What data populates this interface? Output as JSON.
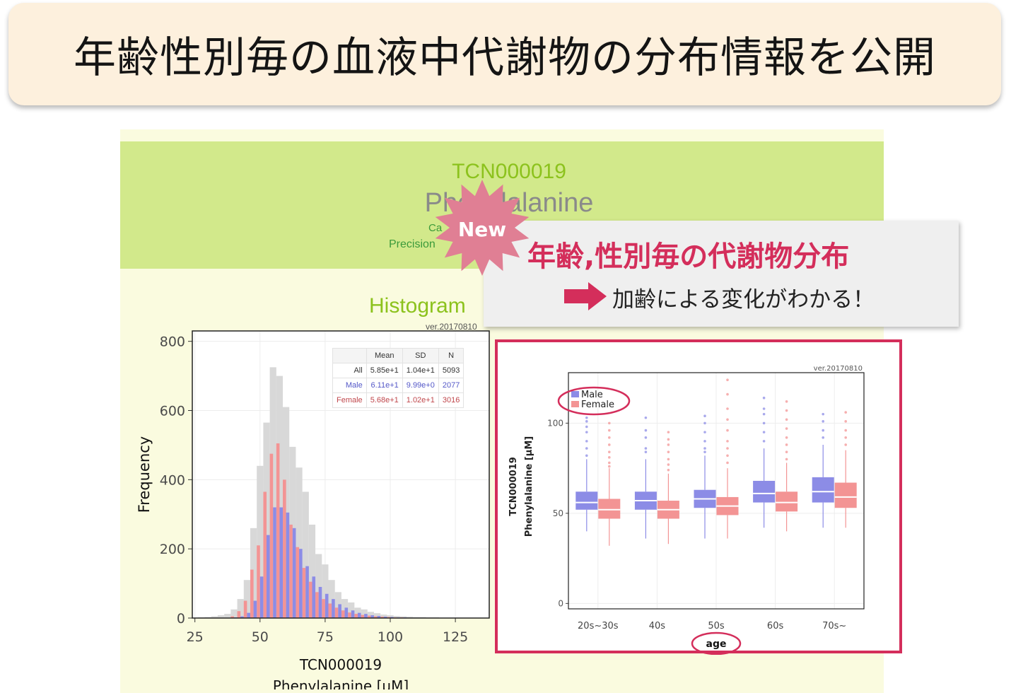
{
  "slide_title": "年齢性別毎の血液中代謝物の分布情報を公開",
  "header": {
    "id": "TCN000019",
    "name": "Phenylalanine",
    "sub1": "Ca",
    "sub2": "Precision"
  },
  "histogram_heading": "Histogram",
  "callout": {
    "badge": "New",
    "title": "年齢,性別毎の代謝物分布",
    "text": "加齢による変化がわかる！"
  },
  "colors": {
    "male": "#8c8ce6",
    "female": "#f39494",
    "all": "#d8d8d8",
    "accent": "#d42e5b",
    "header_green": "#d2e98b",
    "banner": "#fdf0dd"
  },
  "stats_table": {
    "headers": [
      "",
      "Mean",
      "SD",
      "N"
    ],
    "rows": [
      {
        "label": "All",
        "mean": "5.85e+1",
        "sd": "1.04e+1",
        "n": "5093"
      },
      {
        "label": "Male",
        "mean": "6.11e+1",
        "sd": "9.99e+0",
        "n": "2077"
      },
      {
        "label": "Female",
        "mean": "5.68e+1",
        "sd": "1.02e+1",
        "n": "3016"
      }
    ]
  },
  "chart_data": [
    {
      "type": "bar",
      "version": "ver.20170810",
      "xlabel": "TCN000019",
      "xlabel2": "Phenylalanine [μM]",
      "ylabel": "Frequency",
      "xlim": [
        24,
        138
      ],
      "ylim": [
        0,
        830
      ],
      "xticks": [
        25,
        50,
        75,
        100,
        125
      ],
      "yticks": [
        0,
        200,
        400,
        600,
        800
      ],
      "grid": true,
      "bin_width": 2.5,
      "series": [
        {
          "name": "All",
          "x": [
            27.5,
            30,
            32.5,
            35,
            37.5,
            40,
            42.5,
            45,
            47.5,
            50,
            52.5,
            55,
            57.5,
            60,
            62.5,
            65,
            67.5,
            70,
            72.5,
            75,
            77.5,
            80,
            82.5,
            85,
            87.5,
            90,
            92.5,
            95,
            97.5,
            100,
            102.5,
            105,
            107.5,
            110,
            112.5,
            115,
            117.5,
            120,
            122.5,
            125,
            127.5,
            130,
            132.5,
            135
          ],
          "values": [
            2,
            3,
            5,
            8,
            12,
            25,
            55,
            110,
            260,
            440,
            565,
            725,
            700,
            610,
            495,
            435,
            365,
            270,
            185,
            155,
            110,
            75,
            55,
            45,
            30,
            25,
            18,
            14,
            10,
            8,
            6,
            5,
            4,
            3,
            3,
            2,
            2,
            1,
            1,
            1,
            1,
            1,
            0,
            1
          ]
        },
        {
          "name": "Male",
          "x": [
            40,
            42.5,
            45,
            47.5,
            50,
            52.5,
            55,
            57.5,
            60,
            62.5,
            65,
            67.5,
            70,
            72.5,
            75,
            77.5,
            80,
            82.5,
            85,
            87.5,
            90,
            92.5,
            95,
            97.5,
            100,
            102.5,
            105,
            107.5,
            110
          ],
          "values": [
            2,
            5,
            15,
            50,
            120,
            240,
            320,
            320,
            305,
            260,
            200,
            150,
            120,
            90,
            70,
            55,
            40,
            30,
            22,
            15,
            12,
            8,
            6,
            4,
            3,
            2,
            2,
            1,
            1
          ]
        },
        {
          "name": "Female",
          "x": [
            40,
            42.5,
            45,
            47.5,
            50,
            52.5,
            55,
            57.5,
            60,
            62.5,
            65,
            67.5,
            70,
            72.5,
            75,
            77.5,
            80,
            82.5,
            85,
            87.5,
            90,
            92.5,
            95,
            97.5,
            100,
            102.5,
            105,
            107.5,
            110
          ],
          "values": [
            5,
            20,
            50,
            140,
            210,
            365,
            475,
            505,
            400,
            270,
            205,
            145,
            105,
            75,
            55,
            42,
            30,
            22,
            16,
            12,
            9,
            7,
            5,
            4,
            3,
            2,
            2,
            1,
            1
          ]
        }
      ]
    },
    {
      "type": "box",
      "version": "ver.20170810",
      "xlabel": "age",
      "ylabel": "TCN000019",
      "ylabel2": "Phenylalanine [μM]",
      "categories": [
        "20s~30s",
        "40s",
        "50s",
        "60s",
        "70s~"
      ],
      "ylim": [
        -3,
        128
      ],
      "yticks": [
        0,
        50,
        100
      ],
      "grid": true,
      "legend_position": "top-left",
      "series": [
        {
          "name": "Male",
          "boxes": [
            {
              "min": 40,
              "q1": 52,
              "median": 56,
              "q3": 62,
              "max": 80,
              "outliers": [
                82,
                86,
                90,
                95,
                98,
                101,
                103
              ]
            },
            {
              "min": 36,
              "q1": 52,
              "median": 57,
              "q3": 62,
              "max": 80,
              "outliers": [
                84,
                86,
                92,
                96,
                103
              ]
            },
            {
              "min": 36,
              "q1": 53,
              "median": 58,
              "q3": 63,
              "max": 82,
              "outliers": [
                84,
                86,
                90,
                95,
                100,
                104
              ]
            },
            {
              "min": 42,
              "q1": 56,
              "median": 61,
              "q3": 68,
              "max": 86,
              "outliers": [
                90,
                95,
                100,
                105,
                108,
                114
              ]
            },
            {
              "min": 42,
              "q1": 56,
              "median": 62,
              "q3": 70,
              "max": 88,
              "outliers": [
                92,
                96,
                101,
                105
              ]
            }
          ]
        },
        {
          "name": "Female",
          "boxes": [
            {
              "min": 32,
              "q1": 47,
              "median": 52,
              "q3": 58,
              "max": 75,
              "outliers": [
                76,
                78,
                81,
                84,
                88,
                92,
                96,
                100
              ]
            },
            {
              "min": 33,
              "q1": 47,
              "median": 52,
              "q3": 57,
              "max": 72,
              "outliers": [
                74,
                77,
                80,
                84,
                88,
                91,
                95
              ]
            },
            {
              "min": 36,
              "q1": 49,
              "median": 54,
              "q3": 59,
              "max": 75,
              "outliers": [
                78,
                82,
                86,
                90,
                96,
                102,
                108,
                116,
                124
              ]
            },
            {
              "min": 40,
              "q1": 51,
              "median": 56,
              "q3": 62,
              "max": 78,
              "outliers": [
                80,
                84,
                88,
                92,
                97,
                102,
                107,
                112
              ]
            },
            {
              "min": 42,
              "q1": 53,
              "median": 59,
              "q3": 67,
              "max": 85,
              "outliers": [
                88,
                92,
                96,
                101,
                106
              ]
            }
          ]
        }
      ]
    }
  ]
}
